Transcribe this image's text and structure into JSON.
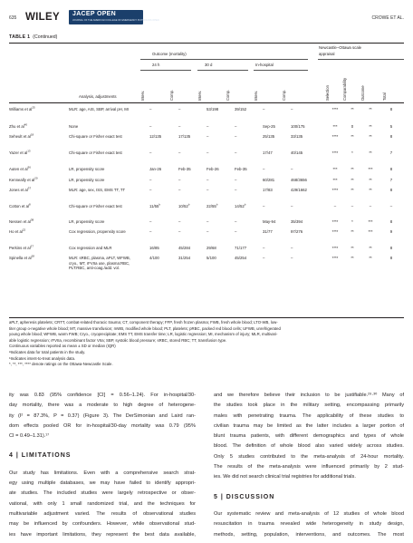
{
  "header": {
    "page_number": "635",
    "publisher": "WILEY",
    "journal_name": "JACEP OPEN",
    "journal_subtitle": "JOURNAL OF THE AMERICAN COLLEGE OF EMERGENCY PHYSICIANS OPEN",
    "running_author": "CROWE ET AL."
  },
  "table": {
    "label": "TABLE 1",
    "continued": "(Continued)",
    "group_outcome": "Outcome (mortality)",
    "group_nos_line1": "Newcastle–Ottawa scale",
    "group_nos_line2": "appraisal",
    "sub_24h": "24 h",
    "sub_30d": "30 d",
    "sub_inhosp": "In-hospital",
    "col_analysis": "Analysis, adjustments",
    "col_interv": "Interv.",
    "col_comp": "Comp.",
    "col_selection": "Selection",
    "col_comparability": "Comparability",
    "col_outcome": "Outcome",
    "col_total": "Total",
    "rows": [
      {
        "study": "Williams et al",
        "ref": "25",
        "adj": "MLR: age, AIS, SBP, arrival pH, MI",
        "h24a": "–",
        "h24b": "–",
        "d30a": "53/198",
        "d30b": "39/152",
        "ha": "–",
        "hb": "–",
        "sel": "****",
        "comp": "**",
        "out": "**",
        "tot": "8"
      },
      {
        "study": "Zhu et al",
        "ref": "40",
        "adj": "None",
        "h24a": "–",
        "h24b": "–",
        "d30a": "–",
        "d30b": "–",
        "ha": "Sep-25",
        "hb": "100/175",
        "sel": "***",
        "comp": "0",
        "out": "**",
        "tot": "5"
      },
      {
        "study": "Seheult et al",
        "ref": "18",
        "adj": "Chi-square or Fisher exact test",
        "h24a": "12/135",
        "h24b": "17/135",
        "d30a": "–",
        "d30b": "–",
        "ha": "25/135",
        "hb": "33/135",
        "sel": "****",
        "comp": "**",
        "out": "**",
        "tot": "8"
      },
      {
        "study": "Yazer et al",
        "ref": "13",
        "adj": "Chi-square or Fisher exact test",
        "h24a": "–",
        "h24b": "–",
        "d30a": "–",
        "d30b": "–",
        "ha": "17/47",
        "hb": "40/145",
        "sel": "****",
        "comp": "*",
        "out": "**",
        "tot": "7"
      },
      {
        "study": "Auten et al",
        "ref": "36",
        "adj": "LR, propensity score",
        "h24a": "Jan-26",
        "h24b": "Feb-35",
        "d30a": "Feb-26",
        "d30b": "Feb-35",
        "ha": "–",
        "hb": "–",
        "sel": "***",
        "comp": "**",
        "out": "***",
        "tot": "8"
      },
      {
        "study": "Kenneally et al",
        "ref": "20",
        "adj": "LR, propensity score",
        "h24a": "–",
        "h24b": "–",
        "d30a": "–",
        "d30b": "–",
        "ha": "60/281",
        "hb": "468/3656",
        "sel": "***",
        "comp": "**",
        "out": "**",
        "tot": "7"
      },
      {
        "study": "Jones et al",
        "ref": "37",
        "adj": "MLR: age, sex, ISS, EMS TT, TT",
        "h24a": "–",
        "h24b": "–",
        "d30a": "–",
        "d30b": "–",
        "ha": "17/83",
        "hb": "429/1662",
        "sel": "****",
        "comp": "**",
        "out": "**",
        "tot": "8"
      },
      {
        "study": "Cotton et al",
        "ref": "8",
        "adj": "Chi-square or Fisher exact test",
        "h24a": "11/55",
        "h24a_sup": "b",
        "h24b": "10/52",
        "h24b_sup": "b",
        "d30a": "22/55",
        "d30a_sup": "b",
        "d30b": "14/52",
        "d30b_sup": "b",
        "ha": "–",
        "hb": "–",
        "sel": "–",
        "comp": "–",
        "out": "–",
        "tot": "–"
      },
      {
        "study": "Nessen et al",
        "ref": "38",
        "adj": "LR, propensity score",
        "h24a": "–",
        "h24b": "–",
        "d30a": "–",
        "d30b": "–",
        "ha": "May-94",
        "hb": "35/394",
        "sel": "****",
        "comp": "*",
        "out": "***",
        "tot": "8"
      },
      {
        "study": "Ho et al",
        "ref": "22",
        "adj": "Cox regression, propensity score",
        "h24a": "–",
        "h24b": "–",
        "d30a": "–",
        "d30b": "–",
        "ha": "31/77",
        "hb": "97/276",
        "sel": "****",
        "comp": "**",
        "out": "***",
        "tot": "9"
      },
      {
        "study": "Perkins et al",
        "ref": "27",
        "adj": "Cox regression and MLR",
        "h24a": "16/85",
        "h24b": "45/284",
        "d30a": "29/68",
        "d30b": "71/177",
        "ha": "–",
        "hb": "–",
        "sel": "****",
        "comp": "**",
        "out": "**",
        "tot": "8"
      },
      {
        "study": "Spinella et al",
        "ref": "28",
        "adj": "MLR: sRBC, plasma, aPLT, WFWB, cryo., MT, rFVIIa use, plasma:RBC, PLT:RBC, anti-coag./add. vol.",
        "h24a": "4/100",
        "h24b": "31/254",
        "d30a": "5/100",
        "d30b": "45/254",
        "ha": "–",
        "hb": "–",
        "sel": "****",
        "comp": "**",
        "out": "**",
        "tot": "8"
      }
    ],
    "footnotes": [
      "aPLT, apheresis platelets; CRTT, combat-related thoracic trauma; CT, component therapy; FFP, fresh frozen plasma; FWB, fresh whole blood; LTO-WB, low-",
      "titer group o-negative whole blood; MT, massive transfusion; mWB, modified whole blood; PLT, platelets; pRBC, packed red blood cells; UFWB, unrefrigerated",
      "young whole blood; WFWB, warm FWB; Cryo., cryoprecipitate; EMS TT, EMS transfer time; LR, logistic regression; MI, mechanism of injury; MLR, multivari-",
      "able logistic regression; rFVIIa, recombinant factor VIIa; SBP, systolic blood pressure; sRBC, stored RBC; TT, transfusion type.",
      "Continuous variables reported as mean ± SD or median (IQR)",
      "ªIndicates data for total patients in the study.",
      "ᵇIndicates intent-to-treat analysis data.",
      "*, **, ***, **** denote ratings on the Ottawa-Newcastle Scale."
    ]
  },
  "body": {
    "left_lines": [
      "ity was 0.83 (95% confidence [CI] = 0.56–1.24). For in-hospital/30-",
      "day mortality, there was a moderate to high degree of heterogene-",
      "ity (I² = 87.3%, P = 0.37) (Figure 3). The DerSimonian and Laird ran-",
      "dom effects pooled OR for in-hospital/30-day mortality was 0.79 (95%",
      "CI = 0.49–1.31).¹⁷"
    ],
    "limitations_heading": "4 | LIMITATIONS",
    "limitations_lines": [
      "Our study has limitations. Even with a comprehensive search strat-",
      "egy using multiple databases, we may have failed to identify appropri-",
      "ate studies. The included studies were largely retrospective or obser-",
      "vational, with only 1 small randomized trial, and the techniques for",
      "multivariable adjustment varied. The results of observational studies",
      "may be influenced by confounders. However, while observational stud-",
      "ies have important limitations, they represent the best data available,"
    ],
    "right_lines": [
      "and we therefore believe their inclusion to be justifiable.²⁹·³⁰ Many of",
      "the studies took place in the military setting, encompassing primarily",
      "males with penetrating trauma. The applicability of these studies to",
      "civilian trauma may be limited as the latter includes a larger portion of",
      "blunt trauma patients, with different demographics and types of whole",
      "blood. The definition of whole blood also varied widely across studies.",
      "Only 5 studies contributed to the meta-analysis of 24-hour mortality.",
      "The results of the meta-analysis were influenced primarily by 2 stud-",
      "ies. We did not search clinical trial registries for additional trials."
    ],
    "discussion_heading": "5 | DISCUSSION",
    "discussion_lines": [
      "Our systematic review and meta-analysis of 12 studies of whole blood",
      "resuscitation in trauma revealed wide heterogeneity in study design,",
      "methods, setting, population, interventions, and outcomes. The most"
    ]
  }
}
